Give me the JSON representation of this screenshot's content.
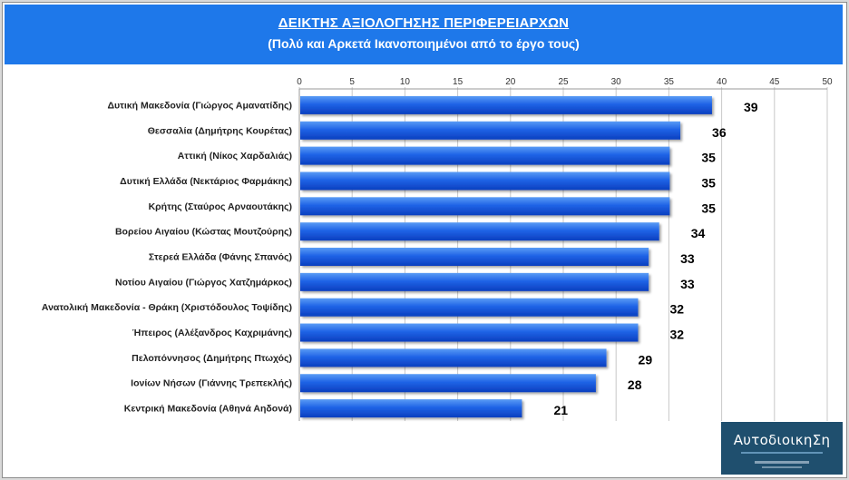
{
  "header": {
    "title": "ΔΕΙΚΤΗΣ ΑΞΙΟΛΟΓΗΣΗΣ ΠΕΡΙΦΕΡΕΙΑΡΧΩΝ",
    "subtitle": "(Πολύ και Αρκετά Ικανοποιημένοι από το έργο τους)"
  },
  "logo": {
    "text": "ΑυτοδιοικηΣη"
  },
  "colors": {
    "bar_top": "#5a9cf5",
    "bar_bottom": "#0b3fbf",
    "header": "#1e78ea",
    "grid": "#c8c8c8"
  },
  "chart_data": {
    "type": "bar",
    "orientation": "horizontal",
    "categories": [
      "Δυτική Μακεδονία (Γιώργος Αμανατίδης)",
      "Θεσσαλία (Δημήτρης Κουρέτας)",
      "Αττική (Νίκος Χαρδαλιάς)",
      "Δυτική Ελλάδα (Νεκτάριος Φαρμάκης)",
      "Κρήτης (Σταύρος Αρναουτάκης)",
      "Βορείου Αιγαίου (Κώστας Μουτζούρης)",
      "Στερεά Ελλάδα (Φάνης Σπανός)",
      "Νοτίου Αιγαίου (Γιώργος Χατζημάρκος)",
      "Ανατολική Μακεδονία - Θράκη (Χριστόδουλος Τοψίδης)",
      "Ήπειρος (Αλέξανδρος Καχριμάνης)",
      "Πελοπόννησος (Δημήτρης Πτωχός)",
      "Ιονίων Νήσων (Γιάννης Τρεπεκλής)",
      "Κεντρική Μακεδονία (Αθηνά Αηδονά)"
    ],
    "values": [
      39,
      36,
      35,
      35,
      35,
      34,
      33,
      33,
      32,
      32,
      29,
      28,
      21
    ],
    "xlim": [
      0,
      50
    ],
    "xticks": [
      0,
      5,
      10,
      15,
      20,
      25,
      30,
      35,
      40,
      45,
      50
    ],
    "x_axis_position": "top",
    "grid": true,
    "legend": "none",
    "data_labels": true
  }
}
